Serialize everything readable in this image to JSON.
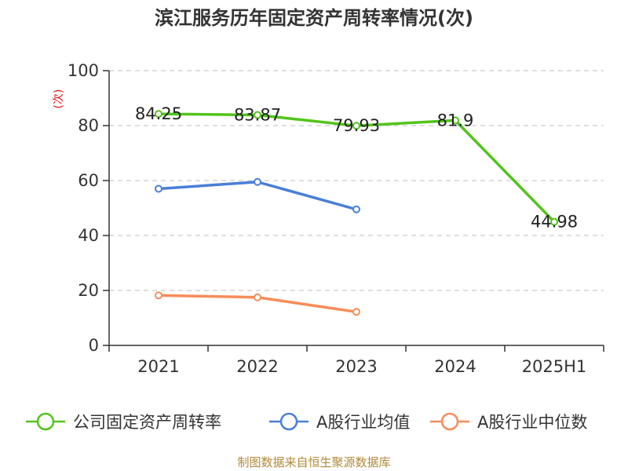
{
  "chart_data": {
    "type": "line",
    "title": "滨江服务历年固定资产周转率情况(次)",
    "ylabel": "(次)",
    "xlabel": "",
    "categories": [
      "2021",
      "2022",
      "2023",
      "2024",
      "2025H1"
    ],
    "ylim": [
      0,
      100
    ],
    "yticks": [
      0,
      20,
      40,
      60,
      80,
      100
    ],
    "grid": true,
    "legend_position": "bottom",
    "series": [
      {
        "name": "公司固定资产周转率",
        "color": "#52c41a",
        "values": [
          84.25,
          83.87,
          79.93,
          81.9,
          44.98
        ],
        "labels": [
          "84.25",
          "83.87",
          "79.93",
          "81.9",
          "44.98"
        ]
      },
      {
        "name": "A股行业均值",
        "color": "#4a7fd8",
        "values": [
          57.0,
          59.5,
          49.5,
          null,
          null
        ]
      },
      {
        "name": "A股行业中位数",
        "color": "#f78c5a",
        "values": [
          18.2,
          17.5,
          12.2,
          null,
          null
        ]
      }
    ]
  },
  "source": "制图数据来自恒生聚源数据库"
}
